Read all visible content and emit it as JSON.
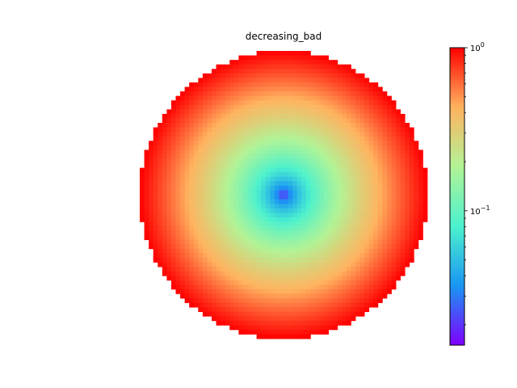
{
  "chart_data": {
    "type": "heatmap",
    "title": "decreasing_bad",
    "xlabel": "",
    "ylabel": "",
    "grid": false,
    "axes_visible": false,
    "shape": "disk",
    "grid_size": 64,
    "description_of_values": "radial field: minimum at center increasing toward the disk edge, cells outside the disk are blank",
    "center_value": 0.015,
    "edge_value": 1.0,
    "colormap": "rainbow",
    "colorbar": {
      "scale": "log",
      "vmin": 0.015,
      "vmax": 1.0,
      "ticks": [
        {
          "value": 1.0,
          "label_base": "10",
          "label_exp": "0"
        },
        {
          "value": 0.1,
          "label_base": "10",
          "label_exp": "−1"
        }
      ]
    },
    "colors": {
      "rainbow_stops": [
        "#8000ff",
        "#1996f3",
        "#4cf2ce",
        "#b2f396",
        "#ffb360",
        "#ff0000"
      ]
    }
  }
}
